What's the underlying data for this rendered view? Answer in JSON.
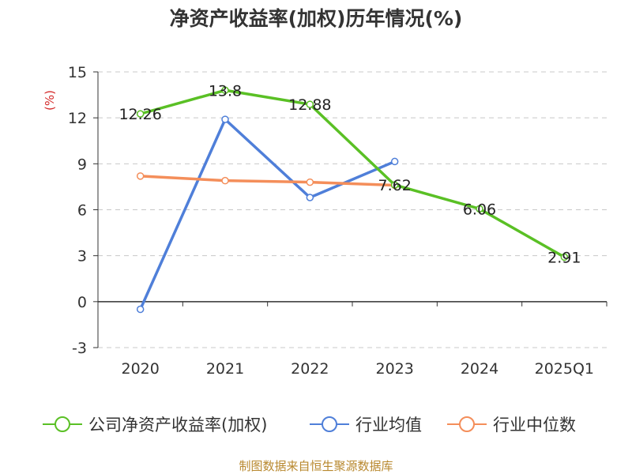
{
  "chart_data": {
    "type": "line",
    "title": "净资产收益率(加权)历年情况(%)",
    "ylabel": "(%)",
    "xlabel": "",
    "categories": [
      "2020",
      "2021",
      "2022",
      "2023",
      "2024",
      "2025Q1"
    ],
    "ylim": [
      -3,
      15
    ],
    "yticks": [
      15,
      12,
      9,
      6,
      3,
      0,
      -3
    ],
    "grid": true,
    "legend_position": "bottom",
    "series": [
      {
        "name": "公司净资产收益率(加权)",
        "color": "#5ac025",
        "values": [
          12.26,
          13.8,
          12.88,
          7.62,
          6.06,
          2.91
        ],
        "labels": [
          "12.26",
          "13.8",
          "12.88",
          "7.62",
          "6.06",
          "2.91"
        ]
      },
      {
        "name": "行业均值",
        "color": "#4f7fd9",
        "values": [
          -0.5,
          11.9,
          6.8,
          9.15,
          null,
          null
        ]
      },
      {
        "name": "行业中位数",
        "color": "#f48e5a",
        "values": [
          8.2,
          7.9,
          7.8,
          7.6,
          null,
          null
        ]
      }
    ],
    "source": "制图数据来自恒生聚源数据库"
  }
}
